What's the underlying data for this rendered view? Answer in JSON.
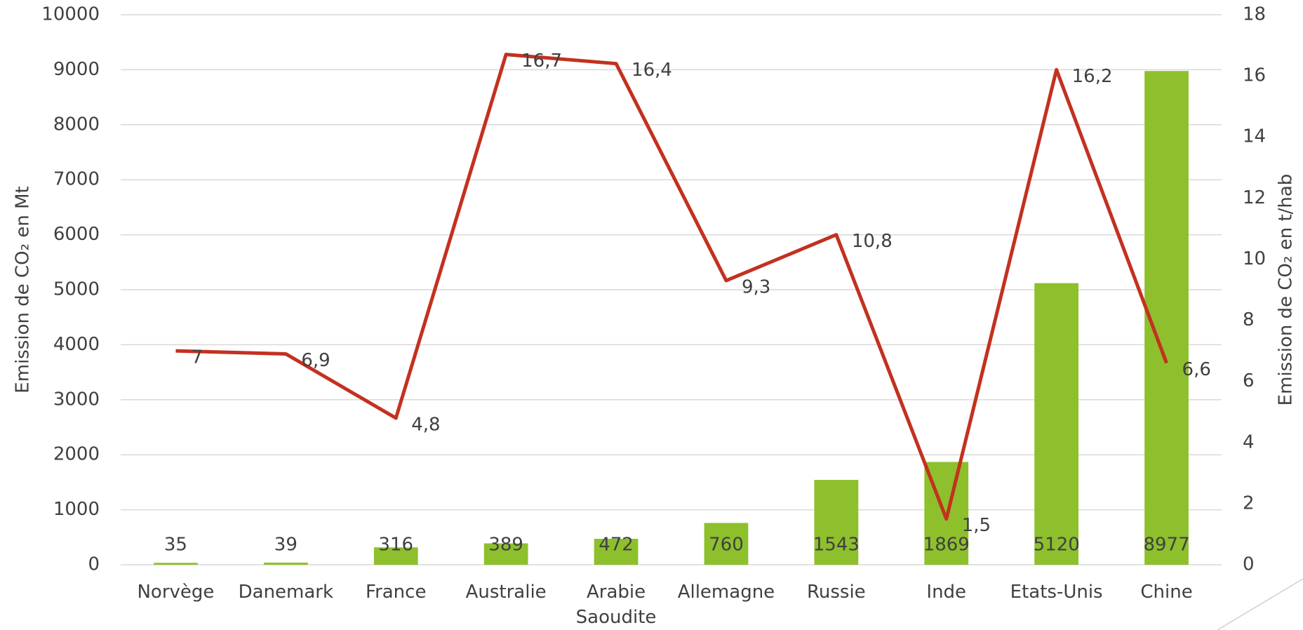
{
  "chart_data": {
    "type": "bar_line",
    "categories": [
      "Norvège",
      "Danemark",
      "France",
      "Australie",
      "Arabie Saoudite",
      "Allemagne",
      "Russie",
      "Inde",
      "Etats-Unis",
      "Chine"
    ],
    "series": [
      {
        "type": "bar",
        "color": "#8dc02c",
        "values": [
          35,
          39,
          316,
          389,
          472,
          760,
          1543,
          1869,
          5120,
          8977
        ]
      },
      {
        "type": "line",
        "axis": "y2",
        "color": "#c3311f",
        "values": [
          7,
          6.9,
          4.8,
          16.7,
          16.4,
          9.3,
          10.8,
          1.5,
          16.2,
          6.6
        ],
        "value_labels": [
          "7",
          "6,9",
          "4,8",
          "16,7",
          "16,4",
          "9,3",
          "10,8",
          "1,5",
          "16,2",
          "6,6"
        ]
      }
    ],
    "ylabel": "Emission de CO₂ en Mt",
    "y2label": "Emission de CO₂ en t/hab",
    "ylim": [
      0,
      10000
    ],
    "yticks": [
      0,
      1000,
      2000,
      3000,
      4000,
      5000,
      6000,
      7000,
      8000,
      9000,
      10000
    ],
    "y2lim": [
      0,
      18
    ],
    "y2ticks": [
      0,
      2,
      4,
      6,
      8,
      10,
      12,
      14,
      16,
      18
    ],
    "grid": true
  }
}
